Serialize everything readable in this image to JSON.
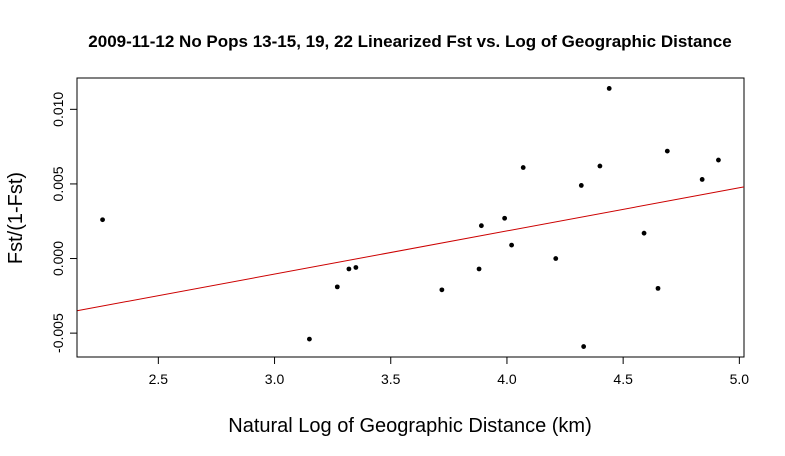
{
  "chart_data": {
    "type": "scatter",
    "title": "2009-11-12 No Pops 13-15, 19, 22 Linearized Fst vs. Log of Geographic Distance",
    "xlabel": "Natural Log of Geographic Distance (km)",
    "ylabel": "Fst/(1-Fst)",
    "xlim": [
      2.15,
      5.02
    ],
    "ylim": [
      -0.0066,
      0.0121
    ],
    "xticks": [
      2.5,
      3.0,
      3.5,
      4.0,
      4.5,
      5.0
    ],
    "xtick_labels": [
      "2.5",
      "3.0",
      "3.5",
      "4.0",
      "4.5",
      "5.0"
    ],
    "yticks": [
      -0.005,
      0.0,
      0.005,
      0.01
    ],
    "ytick_labels": [
      "-0.005",
      "0.000",
      "0.005",
      "0.010"
    ],
    "grid": false,
    "point_color": "#000000",
    "line_color": "#cc0000",
    "points": [
      {
        "x": 2.26,
        "y": 0.0026
      },
      {
        "x": 3.15,
        "y": -0.0054
      },
      {
        "x": 3.27,
        "y": -0.0019
      },
      {
        "x": 3.32,
        "y": -0.0007
      },
      {
        "x": 3.35,
        "y": -0.0006
      },
      {
        "x": 3.72,
        "y": -0.0021
      },
      {
        "x": 3.88,
        "y": -0.0007
      },
      {
        "x": 3.89,
        "y": 0.0022
      },
      {
        "x": 3.99,
        "y": 0.0027
      },
      {
        "x": 4.02,
        "y": 0.0009
      },
      {
        "x": 4.07,
        "y": 0.0061
      },
      {
        "x": 4.21,
        "y": 0.0
      },
      {
        "x": 4.32,
        "y": 0.0049
      },
      {
        "x": 4.33,
        "y": -0.0059
      },
      {
        "x": 4.4,
        "y": 0.0062
      },
      {
        "x": 4.44,
        "y": 0.0114
      },
      {
        "x": 4.59,
        "y": 0.0017
      },
      {
        "x": 4.65,
        "y": -0.002
      },
      {
        "x": 4.69,
        "y": 0.0072
      },
      {
        "x": 4.84,
        "y": 0.0053
      },
      {
        "x": 4.91,
        "y": 0.0066
      }
    ],
    "fit_line": {
      "x": [
        2.15,
        5.02
      ],
      "y": [
        -0.0035,
        0.0048
      ]
    }
  }
}
